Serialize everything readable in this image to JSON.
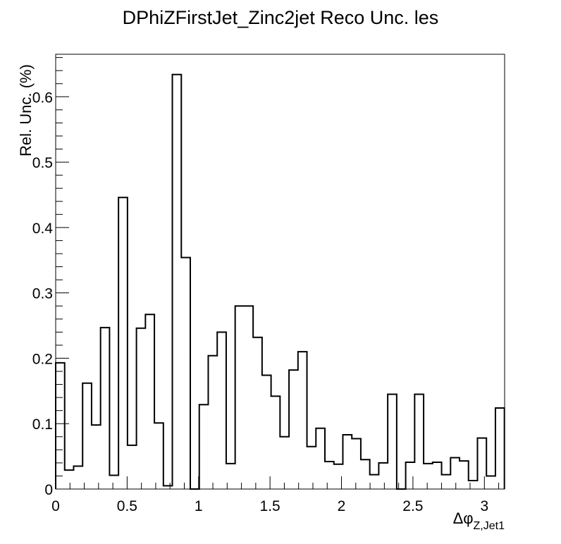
{
  "chart_data": {
    "type": "bar",
    "style": "step-histogram",
    "title": "DPhiZFirstJet_Zinc2jet Reco Unc. les",
    "xlabel": "Δφ",
    "xlabel_sub": "Z,Jet1",
    "ylabel": "Rel. Unc. (%)",
    "xlim": [
      0,
      3.1416
    ],
    "ylim": [
      0,
      0.665
    ],
    "x_ticks": [
      0,
      0.5,
      1,
      1.5,
      2,
      2.5,
      3
    ],
    "x_tick_labels": [
      "0",
      "0.5",
      "1",
      "1.5",
      "2",
      "2.5",
      "3"
    ],
    "y_ticks": [
      0,
      0.1,
      0.2,
      0.3,
      0.4,
      0.5,
      0.6
    ],
    "y_tick_labels": [
      "0",
      "0.1",
      "0.2",
      "0.3",
      "0.4",
      "0.5",
      "0.6"
    ],
    "grid": false,
    "legend": "none",
    "line_color": "#000000",
    "bin_width": 0.0628,
    "values": [
      0.193,
      0.029,
      0.035,
      0.162,
      0.098,
      0.247,
      0.021,
      0.446,
      0.067,
      0.246,
      0.267,
      0.101,
      0.005,
      0.634,
      0.354,
      0.0,
      0.129,
      0.204,
      0.24,
      0.039,
      0.28,
      0.28,
      0.232,
      0.174,
      0.142,
      0.08,
      0.182,
      0.21,
      0.065,
      0.093,
      0.042,
      0.038,
      0.083,
      0.077,
      0.045,
      0.022,
      0.04,
      0.145,
      0.0,
      0.041,
      0.145,
      0.039,
      0.041,
      0.022,
      0.048,
      0.043,
      0.013,
      0.078,
      0.02,
      0.124
    ]
  }
}
